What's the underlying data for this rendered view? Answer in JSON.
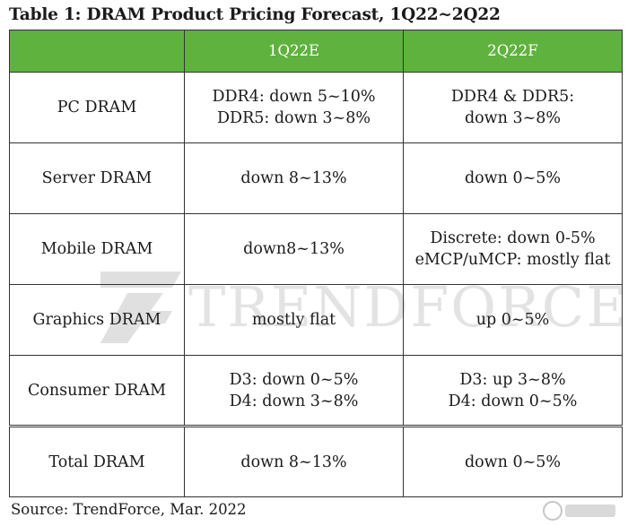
{
  "title": "Table 1: DRAM Product Pricing Forecast, 1Q22~2Q22",
  "columns": [
    "",
    "1Q22E",
    "2Q22F"
  ],
  "rows": [
    {
      "product": "PC DRAM",
      "q1": [
        "DDR4: down 5~10%",
        "DDR5: down 3~8%"
      ],
      "q2": [
        "DDR4 & DDR5:",
        "down 3~8%"
      ]
    },
    {
      "product": "Server DRAM",
      "q1": [
        "down 8~13%"
      ],
      "q2": [
        "down 0~5%"
      ]
    },
    {
      "product": "Mobile DRAM",
      "q1": [
        "down8~13%"
      ],
      "q2": [
        "Discrete: down 0-5%",
        "eMCP/uMCP: mostly flat"
      ]
    },
    {
      "product": "Graphics DRAM",
      "q1": [
        "mostly flat"
      ],
      "q2": [
        "up 0~5%"
      ]
    },
    {
      "product": "Consumer DRAM",
      "q1": [
        "D3: down 0~5%",
        "D4: down 3~8%"
      ],
      "q2": [
        "D3: up 3~8%",
        "D4: down 0~5%"
      ]
    },
    {
      "product": "Total DRAM",
      "q1": [
        "down 8~13%"
      ],
      "q2": [
        "down 0~5%"
      ]
    }
  ],
  "source": "Source: TrendForce, Mar. 2022",
  "watermark": "TRENDFORCE",
  "colors": {
    "header": "#5fb23e",
    "header_text": "#ffffff",
    "border": "#333333"
  }
}
